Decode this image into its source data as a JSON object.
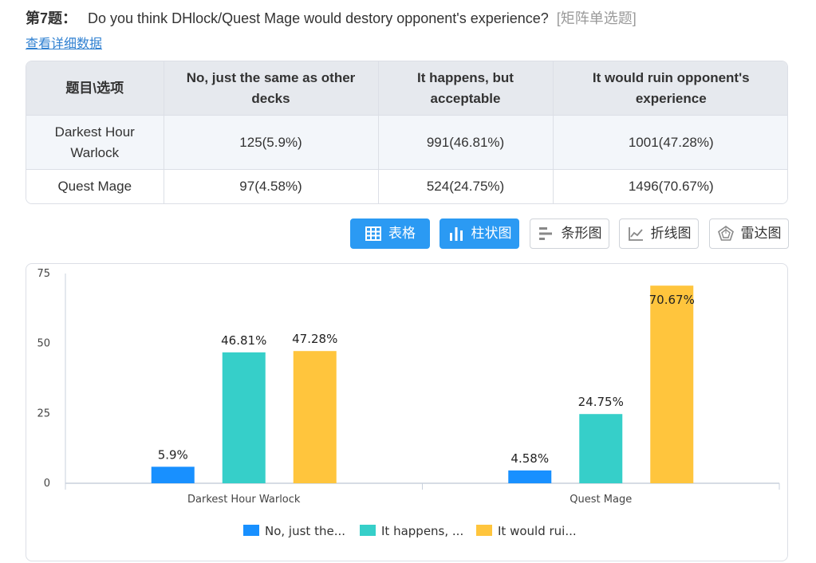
{
  "question": {
    "number": "第7题：",
    "text": "Do you think DHlock/Quest Mage would destory opponent's experience?",
    "type": "[矩阵单选题]",
    "detail_link": "查看详细数据"
  },
  "table": {
    "headers": [
      "题目\\选项",
      "No, just the same as other decks",
      "It happens, but acceptable",
      "It would ruin opponent's experience"
    ],
    "rows": [
      [
        "Darkest Hour Warlock",
        "125(5.9%)",
        "991(46.81%)",
        "1001(47.28%)"
      ],
      [
        "Quest Mage",
        "97(4.58%)",
        "524(24.75%)",
        "1496(70.67%)"
      ]
    ]
  },
  "view_buttons": [
    {
      "label": "表格",
      "icon": "table-grid-icon",
      "active": true
    },
    {
      "label": "柱状图",
      "icon": "bar-chart-icon",
      "active": true
    },
    {
      "label": "条形图",
      "icon": "horizontal-bar-icon",
      "active": false
    },
    {
      "label": "折线图",
      "icon": "line-chart-icon",
      "active": false
    },
    {
      "label": "雷达图",
      "icon": "radar-chart-icon",
      "active": false
    }
  ],
  "colors": {
    "series": [
      "#1890ff",
      "#36cfc9",
      "#ffc53d"
    ],
    "active_button": "#2b9af3",
    "link": "#2f80d1"
  },
  "chart_data": {
    "type": "bar",
    "categories": [
      "Darkest Hour Warlock",
      "Quest Mage"
    ],
    "series": [
      {
        "name": "No, just the...",
        "values": [
          5.9,
          4.58
        ],
        "labels": [
          "5.9%",
          "4.58%"
        ]
      },
      {
        "name": "It happens, ...",
        "values": [
          46.81,
          24.75
        ],
        "labels": [
          "46.81%",
          "24.75%"
        ]
      },
      {
        "name": "It would rui...",
        "values": [
          47.28,
          70.67
        ],
        "labels": [
          "47.28%",
          "70.67%"
        ]
      }
    ],
    "y_ticks": [
      0,
      25,
      50,
      75
    ],
    "ylim": [
      0,
      75
    ],
    "grid": false,
    "legend": "bottom"
  }
}
